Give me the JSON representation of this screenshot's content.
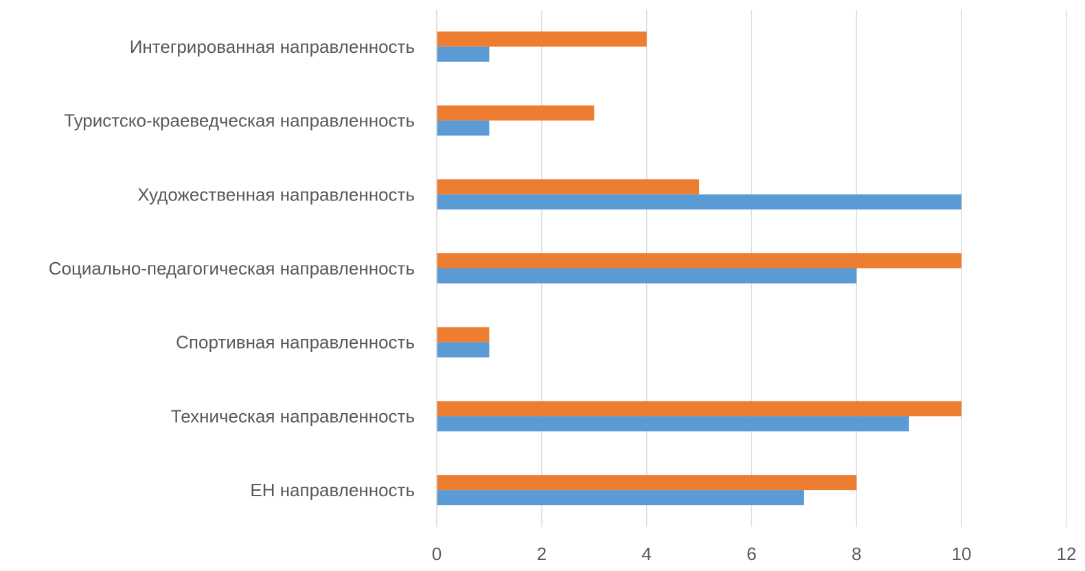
{
  "chart_data": {
    "type": "bar",
    "orientation": "horizontal",
    "categories": [
      "ЕН направленность",
      "Техническая направленность",
      "Спортивная направленность",
      "Социально-педагогическая направленность",
      "Художественная направленность",
      "Туристско-краеведческая направленность",
      "Интегрированная направленность"
    ],
    "series": [
      {
        "values": [
          7,
          9,
          1,
          8,
          10,
          1,
          1
        ],
        "color": "#5B9BD5"
      },
      {
        "values": [
          8,
          10,
          1,
          10,
          5,
          3,
          4
        ],
        "color": "#ED7D31"
      }
    ],
    "xlim": [
      0,
      12
    ],
    "x_ticks": [
      "0",
      "2",
      "4",
      "6",
      "8",
      "10",
      "12"
    ],
    "grid": true,
    "legend": "none",
    "title": "",
    "xlabel": "",
    "ylabel": ""
  }
}
